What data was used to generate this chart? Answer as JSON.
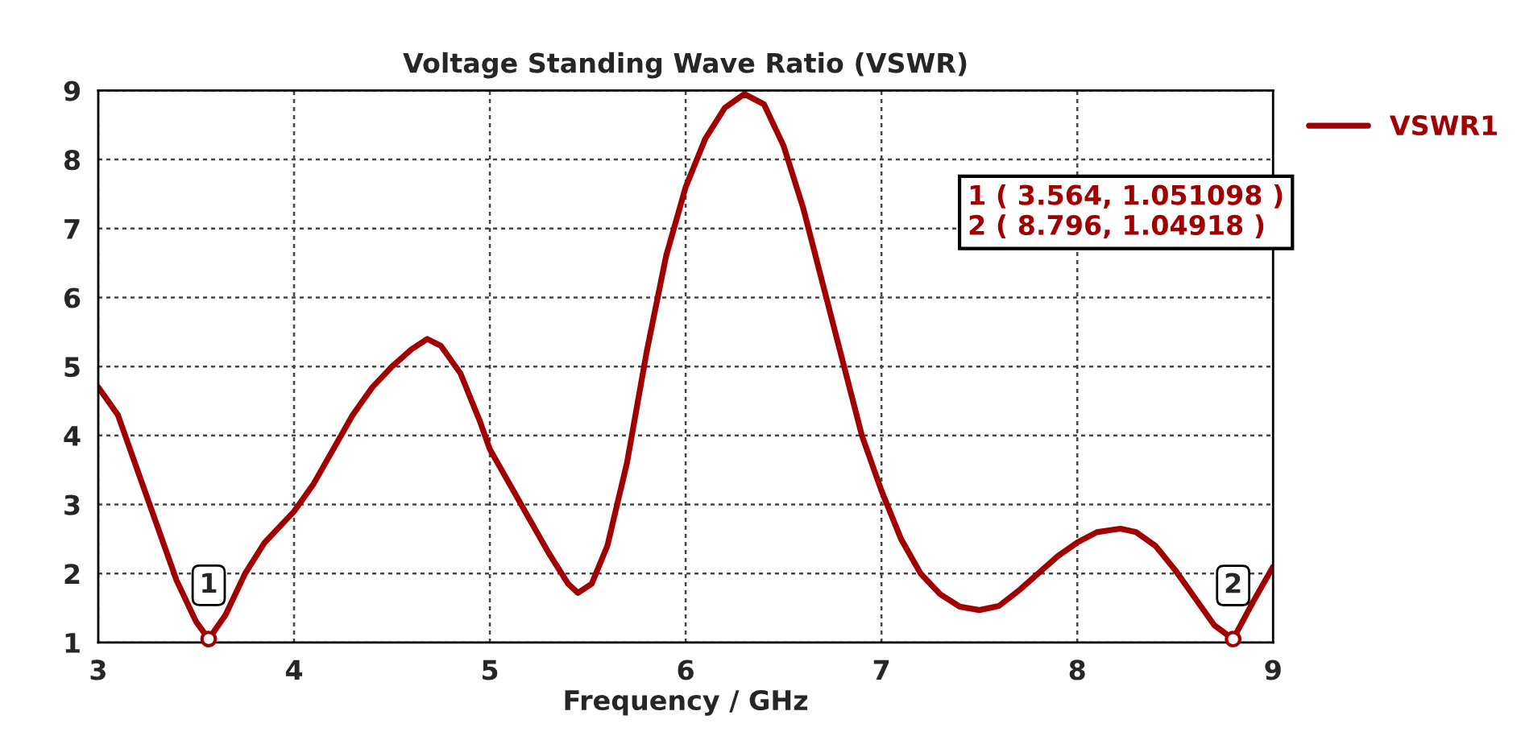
{
  "chart_data": {
    "type": "line",
    "title": "Voltage Standing Wave Ratio (VSWR)",
    "xlabel": "Frequency / GHz",
    "xlim": [
      3,
      9
    ],
    "xticks": [
      3,
      4,
      5,
      6,
      7,
      8,
      9
    ],
    "ylim": [
      1,
      9
    ],
    "yticks": [
      1,
      2,
      3,
      4,
      5,
      6,
      7,
      8,
      9
    ],
    "grid": true,
    "legend": "top right",
    "line_style": "solid",
    "series": [
      {
        "name": "VSWR1",
        "color": "#a00000",
        "x": [
          3,
          3.1,
          3.2,
          3.3,
          3.4,
          3.5,
          3.564,
          3.65,
          3.75,
          3.85,
          4.0,
          4.1,
          4.2,
          4.3,
          4.4,
          4.5,
          4.6,
          4.68,
          4.75,
          4.85,
          4.95,
          5.0,
          5.1,
          5.2,
          5.3,
          5.4,
          5.45,
          5.52,
          5.6,
          5.7,
          5.8,
          5.9,
          6.0,
          6.1,
          6.2,
          6.3,
          6.4,
          6.5,
          6.6,
          6.7,
          6.8,
          6.9,
          7.0,
          7.1,
          7.2,
          7.3,
          7.4,
          7.5,
          7.6,
          7.7,
          7.8,
          7.9,
          8.0,
          8.1,
          8.22,
          8.3,
          8.4,
          8.5,
          8.6,
          8.7,
          8.796,
          8.9,
          9.0
        ],
        "values": [
          4.7,
          4.3,
          3.5,
          2.7,
          1.9,
          1.3,
          1.05,
          1.4,
          2.0,
          2.45,
          2.9,
          3.3,
          3.8,
          4.3,
          4.7,
          5.0,
          5.25,
          5.4,
          5.3,
          4.9,
          4.2,
          3.8,
          3.3,
          2.8,
          2.3,
          1.85,
          1.72,
          1.85,
          2.4,
          3.6,
          5.2,
          6.6,
          7.6,
          8.3,
          8.75,
          8.95,
          8.8,
          8.2,
          7.3,
          6.2,
          5.1,
          4.0,
          3.2,
          2.5,
          2.0,
          1.7,
          1.52,
          1.47,
          1.53,
          1.75,
          2.0,
          2.25,
          2.45,
          2.6,
          2.65,
          2.6,
          2.4,
          2.05,
          1.65,
          1.25,
          1.05,
          1.6,
          2.1
        ]
      }
    ],
    "annotations": [
      {
        "text": "1",
        "x": 3.564,
        "y": 1.051098
      },
      {
        "text": "2",
        "x": 8.796,
        "y": 1.04918
      },
      "1 ( 3.564, 1.051098 )",
      "2 ( 8.796, 1.04918 )"
    ]
  }
}
